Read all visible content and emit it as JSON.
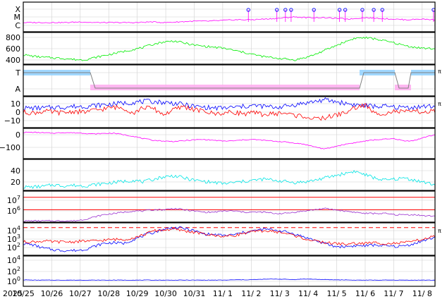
{
  "chart_data": {
    "type": "line",
    "x_axis": {
      "year_label": "2025",
      "ticks": [
        "10/25",
        "10/26",
        "10/27",
        "10/28",
        "10/29",
        "10/30",
        "10/31",
        "11/ 1",
        "11/ 2",
        "11/ 3",
        "11/ 4",
        "11/ 5",
        "11/ 6",
        "11/ 7",
        "11/ 8"
      ]
    },
    "colors": {
      "magenta": "#ff00ff",
      "green": "#00ee00",
      "blue": "#0000ff",
      "red": "#ff0000",
      "cyan": "#00e5e5",
      "purple": "#9b30d0",
      "light_blue": "#8fd0ff",
      "pink": "#ffaaee",
      "gray": "#808080"
    },
    "panels": [
      {
        "key": "xray",
        "yticks": [
          "X",
          "M",
          "C"
        ],
        "right_label": "",
        "series": [
          {
            "color": "magenta",
            "levels": [
              0.2,
              0.2,
              0.2,
              0.2,
              0.25,
              0.2,
              0.2,
              0.2,
              0.2,
              0.25,
              0.2,
              0.25,
              0.3,
              0.3,
              0.35,
              0.4,
              0.4,
              0.45,
              0.5,
              0.6,
              0.55,
              0.55,
              0.5,
              0.45,
              0.55,
              0.5,
              0.45,
              0.4,
              0.45,
              0.4
            ]
          }
        ],
        "flare_markers": [
          7.9,
          8.9,
          9.2,
          9.4,
          10.2,
          11.1,
          11.3,
          11.9,
          12.3,
          12.6,
          14.4
        ]
      },
      {
        "key": "speed",
        "yticks": [
          "800",
          "600",
          "400"
        ],
        "ylim": [
          300,
          900
        ],
        "right_label": "",
        "series": [
          {
            "color": "green",
            "values": [
              480,
              450,
              430,
              420,
              410,
              390,
              380,
              420,
              460,
              500,
              540,
              580,
              620,
              680,
              720,
              740,
              700,
              660,
              640,
              620,
              600,
              560,
              520,
              480,
              440,
              420,
              400,
              380,
              420,
              480,
              560,
              640,
              720,
              790,
              800,
              780,
              740,
              700,
              650,
              620,
              600,
              590
            ]
          }
        ]
      },
      {
        "key": "mag_sector",
        "yticks": [
          "T",
          "A"
        ],
        "right_label": "π",
        "series": [
          {
            "color": "light_blue",
            "state": "T"
          },
          {
            "color": "pink",
            "state": "A"
          },
          {
            "color": "gray",
            "state": "polarity"
          }
        ]
      },
      {
        "key": "bfield",
        "yticks": [
          "10",
          "0",
          "−10"
        ],
        "ylim": [
          -20,
          18
        ],
        "right_label": "π",
        "series": [
          {
            "color": "blue",
            "values": [
              4,
              4,
              4,
              5,
              5,
              6,
              6,
              7,
              8,
              9,
              10,
              11,
              12,
              12,
              11,
              10,
              8,
              6,
              5,
              4,
              4,
              5,
              6,
              7,
              6,
              5,
              6,
              8,
              10,
              12,
              14,
              12,
              10,
              8,
              7,
              6,
              6,
              5,
              5,
              5,
              6,
              6
            ]
          },
          {
            "color": "red",
            "values": [
              -1,
              -2,
              0,
              -1,
              -2,
              0,
              -1,
              1,
              3,
              5,
              4,
              -2,
              5,
              3,
              -4,
              2,
              6,
              2,
              0,
              -3,
              -2,
              -1,
              -3,
              -2,
              -4,
              -3,
              -2,
              -5,
              -6,
              -10,
              -8,
              -5,
              -2,
              4,
              8,
              -3,
              -2,
              0,
              -1,
              0,
              -1,
              0
            ]
          }
        ]
      },
      {
        "key": "dst",
        "yticks": [
          "0",
          "−100"
        ],
        "ylim": [
          -170,
          20
        ],
        "right_label": "",
        "series": [
          {
            "color": "magenta",
            "values": [
              -5,
              -5,
              -8,
              -10,
              -6,
              -8,
              -10,
              -15,
              -12,
              -10,
              -20,
              -30,
              -45,
              -55,
              -60,
              -62,
              -58,
              -52,
              -50,
              -55,
              -60,
              -58,
              -52,
              -50,
              -55,
              -60,
              -65,
              -72,
              -80,
              -95,
              -110,
              -95,
              -80,
              -70,
              -60,
              -52,
              -48,
              -45,
              -60,
              -55,
              -35,
              -20
            ]
          }
        ]
      },
      {
        "key": "kp",
        "yticks": [
          "40",
          "20"
        ],
        "ylim": [
          0,
          55
        ],
        "right_label": "",
        "series": [
          {
            "color": "cyan",
            "values": [
              6,
              6,
              7,
              10,
              8,
              9,
              8,
              10,
              12,
              14,
              16,
              18,
              15,
              20,
              24,
              26,
              22,
              18,
              16,
              14,
              12,
              14,
              16,
              18,
              20,
              18,
              16,
              14,
              15,
              18,
              22,
              26,
              30,
              34,
              28,
              22,
              18,
              20,
              22,
              18,
              14,
              10
            ]
          }
        ]
      },
      {
        "key": "proton",
        "yticks": [
          "10^7",
          "10^6"
        ],
        "ylim": [
          5.0,
          7.5
        ],
        "right_label": "",
        "hlines": [
          {
            "value": 7.0,
            "color": "red"
          },
          {
            "value": 6.0,
            "color": "red"
          }
        ],
        "series": [
          {
            "color": "purple",
            "values": [
              5.1,
              5.1,
              5.1,
              5.1,
              5.1,
              5.1,
              5.2,
              5.4,
              5.6,
              5.7,
              5.8,
              5.9,
              5.9,
              6.0,
              6.0,
              6.1,
              6.0,
              5.9,
              5.8,
              5.8,
              5.9,
              5.9,
              5.8,
              5.8,
              5.8,
              5.7,
              5.7,
              5.8,
              5.9,
              6.0,
              6.1,
              6.0,
              5.9,
              5.8,
              5.7,
              5.7,
              5.7,
              5.6,
              5.6,
              5.6,
              5.5,
              5.5
            ]
          }
        ]
      },
      {
        "key": "electron",
        "yticks": [
          "10^4",
          "10^3",
          "10^2"
        ],
        "ylim": [
          0.5,
          4.6
        ],
        "right_label": "π",
        "hlines": [
          {
            "value": 4.0,
            "color": "red",
            "dashed": true
          }
        ],
        "series": [
          {
            "color": "blue",
            "values": [
              2.0,
              1.8,
              1.4,
              1.2,
              1.1,
              1.1,
              1.2,
              1.6,
              2.0,
              2.1,
              2.0,
              2.5,
              3.0,
              3.4,
              3.8,
              4.0,
              3.9,
              3.6,
              3.2,
              3.1,
              3.0,
              3.1,
              3.4,
              3.6,
              3.8,
              3.7,
              3.5,
              3.2,
              2.8,
              2.4,
              2.0,
              1.6,
              1.6,
              1.7,
              1.7,
              1.8,
              1.7,
              1.6,
              1.7,
              2.0,
              2.4,
              2.8
            ]
          },
          {
            "color": "red",
            "values": [
              2.2,
              2.2,
              2.3,
              2.2,
              2.2,
              2.2,
              2.3,
              2.3,
              2.4,
              2.5,
              2.5,
              2.7,
              3.1,
              3.6,
              3.7,
              3.8,
              3.6,
              3.4,
              3.2,
              3.0,
              2.9,
              3.0,
              3.3,
              3.5,
              3.6,
              3.5,
              3.3,
              3.0,
              2.6,
              2.3,
              2.1,
              2.0,
              1.9,
              2.0,
              2.0,
              2.1,
              2.0,
              2.0,
              2.1,
              2.3,
              2.6,
              2.9
            ]
          }
        ]
      },
      {
        "key": "particles",
        "yticks": [
          "10^4",
          "10^2",
          "10^0"
        ],
        "ylim": [
          -0.8,
          4.6
        ],
        "right_label": "",
        "series": [
          {
            "color": "blue",
            "values": [
              0.35,
              0.3,
              0.3,
              0.3,
              0.3,
              0.3,
              0.3,
              0.3,
              0.3,
              0.3,
              0.3,
              0.3,
              0.3,
              0.3,
              0.3,
              0.3,
              0.3,
              0.3,
              0.3,
              0.3,
              0.3,
              0.35,
              0.35,
              0.4,
              0.45,
              0.5,
              0.45,
              0.4,
              0.5,
              0.45,
              0.4,
              0.35,
              0.35,
              0.3,
              0.3,
              0.3,
              0.3,
              0.3,
              0.3,
              0.3,
              0.3,
              0.3
            ]
          }
        ]
      }
    ]
  }
}
